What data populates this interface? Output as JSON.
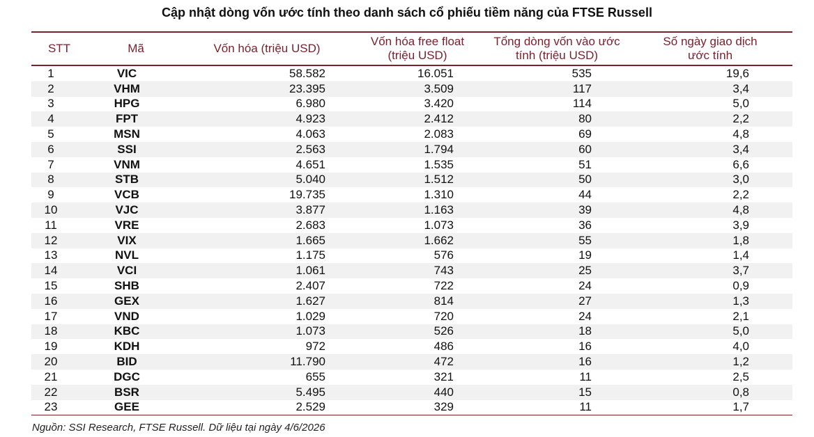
{
  "title": "Cập nhật dòng vốn ước tính theo danh sách cổ phiếu tiềm năng của FTSE Russell",
  "columns": {
    "stt": "STT",
    "ma": "Mã",
    "cap": "Vốn hóa (triệu USD)",
    "ff_line1": "Vốn hóa free float",
    "ff_line2": "(triệu USD)",
    "flow_line1": "Tổng dòng vốn vào ước",
    "flow_line2": "tính (triệu USD)",
    "days_line1": "Số ngày giao dịch",
    "days_line2": "ước tính"
  },
  "rows": [
    {
      "stt": "1",
      "ma": "VIC",
      "cap": "58.582",
      "ff": "16.051",
      "flow": "535",
      "days": "19,6"
    },
    {
      "stt": "2",
      "ma": "VHM",
      "cap": "23.395",
      "ff": "3.509",
      "flow": "117",
      "days": "3,4"
    },
    {
      "stt": "3",
      "ma": "HPG",
      "cap": "6.980",
      "ff": "3.420",
      "flow": "114",
      "days": "5,0"
    },
    {
      "stt": "4",
      "ma": "FPT",
      "cap": "4.923",
      "ff": "2.412",
      "flow": "80",
      "days": "2,2"
    },
    {
      "stt": "5",
      "ma": "MSN",
      "cap": "4.063",
      "ff": "2.083",
      "flow": "69",
      "days": "4,8"
    },
    {
      "stt": "6",
      "ma": "SSI",
      "cap": "2.563",
      "ff": "1.794",
      "flow": "60",
      "days": "3,4"
    },
    {
      "stt": "7",
      "ma": "VNM",
      "cap": "4.651",
      "ff": "1.535",
      "flow": "51",
      "days": "6,6"
    },
    {
      "stt": "8",
      "ma": "STB",
      "cap": "5.040",
      "ff": "1.512",
      "flow": "50",
      "days": "3,0"
    },
    {
      "stt": "9",
      "ma": "VCB",
      "cap": "19.735",
      "ff": "1.310",
      "flow": "44",
      "days": "2,2"
    },
    {
      "stt": "10",
      "ma": "VJC",
      "cap": "3.877",
      "ff": "1.163",
      "flow": "39",
      "days": "4,8"
    },
    {
      "stt": "11",
      "ma": "VRE",
      "cap": "2.683",
      "ff": "1.073",
      "flow": "36",
      "days": "3,9"
    },
    {
      "stt": "12",
      "ma": "VIX",
      "cap": "1.665",
      "ff": "1.662",
      "flow": "55",
      "days": "1,8"
    },
    {
      "stt": "13",
      "ma": "NVL",
      "cap": "1.175",
      "ff": "576",
      "flow": "19",
      "days": "1,4"
    },
    {
      "stt": "14",
      "ma": "VCI",
      "cap": "1.061",
      "ff": "743",
      "flow": "25",
      "days": "3,7"
    },
    {
      "stt": "15",
      "ma": "SHB",
      "cap": "2.407",
      "ff": "722",
      "flow": "24",
      "days": "0,9"
    },
    {
      "stt": "16",
      "ma": "GEX",
      "cap": "1.627",
      "ff": "814",
      "flow": "27",
      "days": "1,3"
    },
    {
      "stt": "17",
      "ma": "VND",
      "cap": "1.029",
      "ff": "720",
      "flow": "24",
      "days": "2,1"
    },
    {
      "stt": "18",
      "ma": "KBC",
      "cap": "1.073",
      "ff": "526",
      "flow": "18",
      "days": "5,0"
    },
    {
      "stt": "19",
      "ma": "KDH",
      "cap": "972",
      "ff": "486",
      "flow": "16",
      "days": "4,0"
    },
    {
      "stt": "20",
      "ma": "BID",
      "cap": "11.790",
      "ff": "472",
      "flow": "16",
      "days": "1,2"
    },
    {
      "stt": "21",
      "ma": "DGC",
      "cap": "655",
      "ff": "321",
      "flow": "11",
      "days": "2,5"
    },
    {
      "stt": "22",
      "ma": "BSR",
      "cap": "5.495",
      "ff": "440",
      "flow": "15",
      "days": "0,8"
    },
    {
      "stt": "23",
      "ma": "GEE",
      "cap": "2.529",
      "ff": "329",
      "flow": "11",
      "days": "1,7"
    }
  ],
  "source": "Nguồn: SSI Research, FTSE Russell. Dữ liệu tại ngày 4/6/2026",
  "colors": {
    "accent": "#7a1f2b",
    "zebra": "#f1f1f1"
  }
}
